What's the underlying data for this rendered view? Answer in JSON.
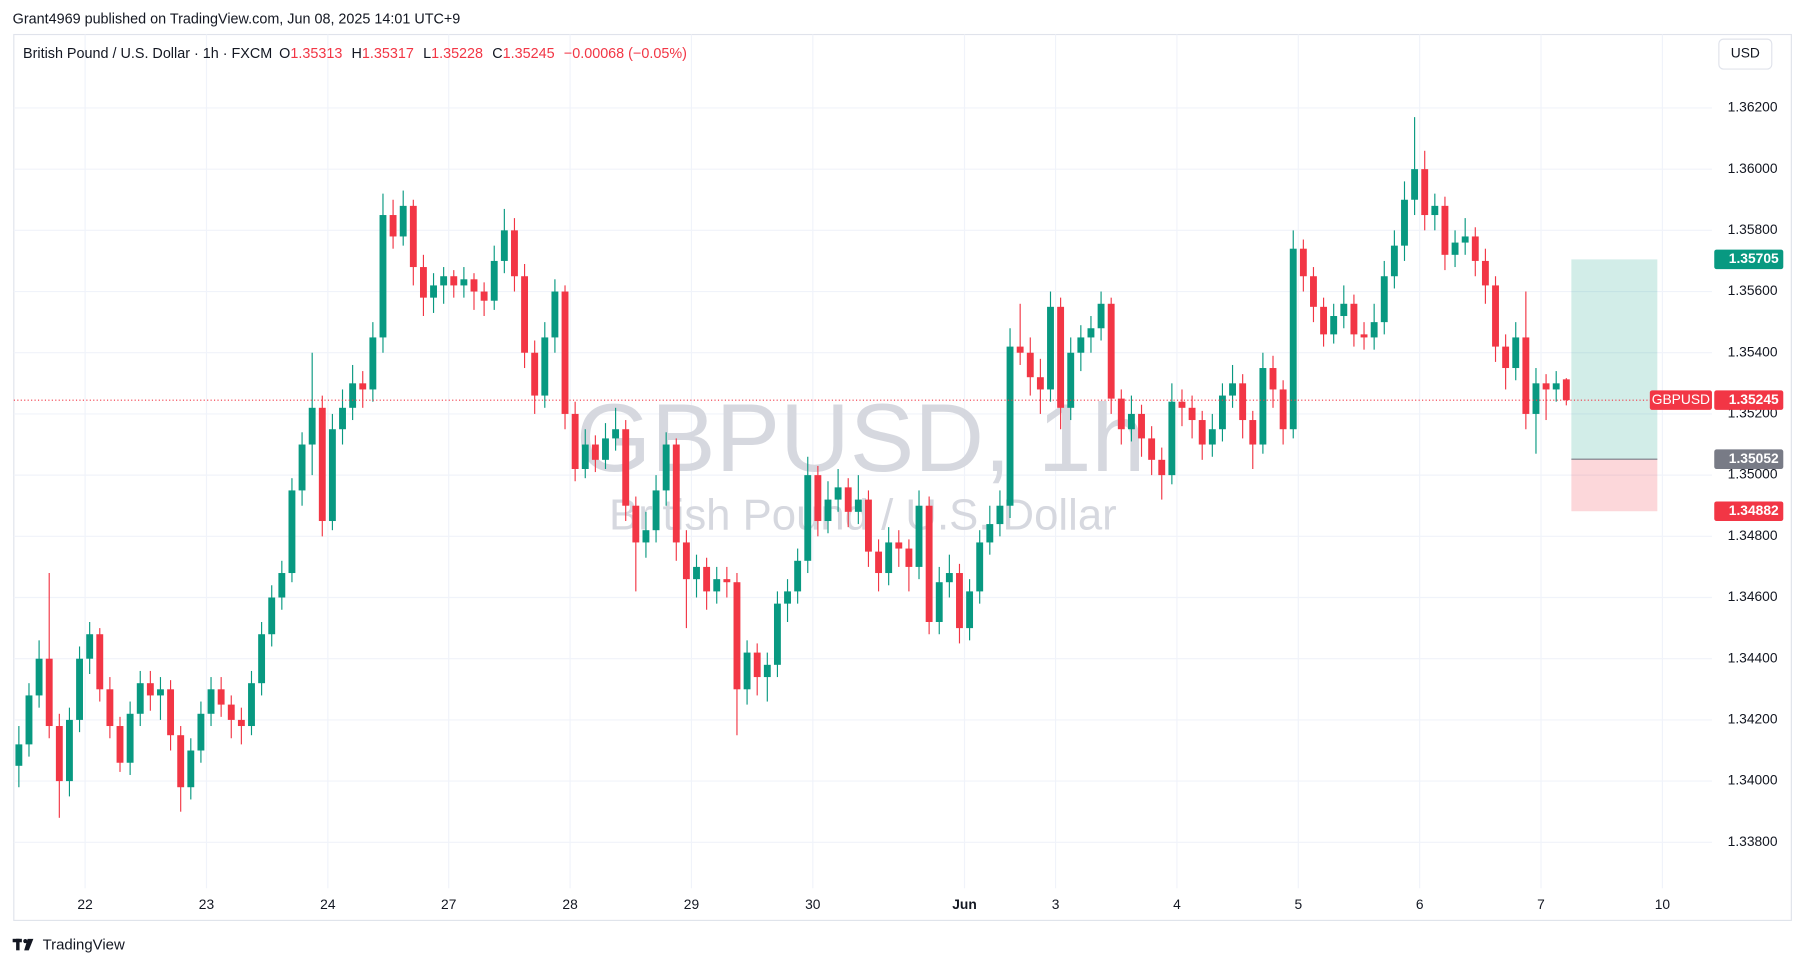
{
  "header": {
    "publisher": "Grant4969 published on TradingView.com, Jun 08, 2025 14:01 UTC+9"
  },
  "chart_data": {
    "type": "candlestick",
    "title": "British Pound / U.S. Dollar · 1h · FXCM",
    "ohlc_labels": [
      "O",
      "H",
      "L",
      "C"
    ],
    "change": "−0.00068 (−0.05%)",
    "watermark": "GBPUSD, 1h",
    "watermark_subtitle": "British Pound / U.S. Dollar",
    "currency": "USD",
    "symbol": "GBPUSD",
    "up_color": "#089981",
    "down_color": "#f23645",
    "grid": true,
    "xlim": [
      0,
      335.8
    ],
    "xticks": [
      {
        "value": 14.1,
        "label": "22"
      },
      {
        "value": 38.1,
        "label": "23"
      },
      {
        "value": 62.1,
        "label": "24"
      },
      {
        "value": 86,
        "label": "27"
      },
      {
        "value": 110,
        "label": "28"
      },
      {
        "value": 134,
        "label": "29"
      },
      {
        "value": 158,
        "label": "30"
      },
      {
        "value": 188,
        "label": "Jun"
      },
      {
        "value": 206,
        "label": "3"
      },
      {
        "value": 230,
        "label": "4"
      },
      {
        "value": 254,
        "label": "5"
      },
      {
        "value": 278,
        "label": "6"
      },
      {
        "value": 302,
        "label": "7"
      },
      {
        "value": 326,
        "label": "10"
      }
    ],
    "ylim": [
      1.3365,
      1.3644
    ],
    "yticks": [
      {
        "value": 1.338,
        "label": "1.33800"
      },
      {
        "value": 1.34,
        "label": "1.34000"
      },
      {
        "value": 1.342,
        "label": "1.34200"
      },
      {
        "value": 1.344,
        "label": "1.34400"
      },
      {
        "value": 1.346,
        "label": "1.34600"
      },
      {
        "value": 1.348,
        "label": "1.34800"
      },
      {
        "value": 1.35,
        "label": "1.35000"
      },
      {
        "value": 1.352,
        "label": "1.35200"
      },
      {
        "value": 1.354,
        "label": "1.35400"
      },
      {
        "value": 1.356,
        "label": "1.35600"
      },
      {
        "value": 1.358,
        "label": "1.35800"
      },
      {
        "value": 1.36,
        "label": "1.36000"
      },
      {
        "value": 1.362,
        "label": "1.36200"
      }
    ],
    "position": {
      "target": 1.35705,
      "entry": 1.35052,
      "stop": 1.34882,
      "x_start": 308,
      "x_end": 325
    },
    "candles": [
      [
        1.3405,
        1.3418,
        1.3398,
        1.3412
      ],
      [
        1.3412,
        1.3432,
        1.3408,
        1.3428
      ],
      [
        1.3428,
        1.3446,
        1.3424,
        1.344
      ],
      [
        1.344,
        1.3468,
        1.3414,
        1.3418
      ],
      [
        1.3418,
        1.3422,
        1.3388,
        1.34
      ],
      [
        1.34,
        1.3424,
        1.3395,
        1.342
      ],
      [
        1.342,
        1.3444,
        1.3416,
        1.344
      ],
      [
        1.344,
        1.3452,
        1.3435,
        1.3448
      ],
      [
        1.3448,
        1.345,
        1.3426,
        1.343
      ],
      [
        1.343,
        1.3434,
        1.3414,
        1.3418
      ],
      [
        1.3418,
        1.3421,
        1.3403,
        1.3406
      ],
      [
        1.3406,
        1.3426,
        1.3402,
        1.3422
      ],
      [
        1.3422,
        1.3436,
        1.3418,
        1.3432
      ],
      [
        1.3432,
        1.3436,
        1.3423,
        1.3428
      ],
      [
        1.3428,
        1.3434,
        1.342,
        1.343
      ],
      [
        1.343,
        1.3433,
        1.341,
        1.3415
      ],
      [
        1.3415,
        1.3418,
        1.339,
        1.3398
      ],
      [
        1.3398,
        1.3414,
        1.3394,
        1.341
      ],
      [
        1.341,
        1.3426,
        1.3406,
        1.3422
      ],
      [
        1.3422,
        1.3434,
        1.3418,
        1.343
      ],
      [
        1.343,
        1.3434,
        1.3421,
        1.3425
      ],
      [
        1.3425,
        1.3428,
        1.3414,
        1.342
      ],
      [
        1.342,
        1.3424,
        1.3412,
        1.3418
      ],
      [
        1.3418,
        1.3436,
        1.3415,
        1.3432
      ],
      [
        1.3432,
        1.3452,
        1.3428,
        1.3448
      ],
      [
        1.3448,
        1.3464,
        1.3444,
        1.346
      ],
      [
        1.346,
        1.3472,
        1.3456,
        1.3468
      ],
      [
        1.3468,
        1.3499,
        1.3465,
        1.3495
      ],
      [
        1.3495,
        1.3514,
        1.349,
        1.351
      ],
      [
        1.351,
        1.354,
        1.35,
        1.3522
      ],
      [
        1.3522,
        1.3526,
        1.348,
        1.3485
      ],
      [
        1.3485,
        1.352,
        1.3482,
        1.3515
      ],
      [
        1.3515,
        1.3528,
        1.351,
        1.3522
      ],
      [
        1.3522,
        1.3536,
        1.3518,
        1.353
      ],
      [
        1.353,
        1.3534,
        1.3522,
        1.3528
      ],
      [
        1.3528,
        1.355,
        1.3524,
        1.3545
      ],
      [
        1.3545,
        1.3592,
        1.354,
        1.3585
      ],
      [
        1.3585,
        1.359,
        1.3574,
        1.3578
      ],
      [
        1.3578,
        1.3593,
        1.3575,
        1.3588
      ],
      [
        1.3588,
        1.359,
        1.3562,
        1.3568
      ],
      [
        1.3568,
        1.3572,
        1.3552,
        1.3558
      ],
      [
        1.3558,
        1.3566,
        1.3553,
        1.3562
      ],
      [
        1.3562,
        1.3568,
        1.3556,
        1.3565
      ],
      [
        1.3565,
        1.3567,
        1.3558,
        1.3562
      ],
      [
        1.3562,
        1.3568,
        1.3558,
        1.3564
      ],
      [
        1.3564,
        1.3566,
        1.3554,
        1.356
      ],
      [
        1.356,
        1.3563,
        1.3552,
        1.3557
      ],
      [
        1.3557,
        1.3575,
        1.3554,
        1.357
      ],
      [
        1.357,
        1.3587,
        1.3566,
        1.358
      ],
      [
        1.358,
        1.3584,
        1.356,
        1.3565
      ],
      [
        1.3565,
        1.3569,
        1.3535,
        1.354
      ],
      [
        1.354,
        1.3544,
        1.352,
        1.3526
      ],
      [
        1.3526,
        1.355,
        1.3522,
        1.3545
      ],
      [
        1.3545,
        1.3564,
        1.354,
        1.356
      ],
      [
        1.356,
        1.3562,
        1.3515,
        1.352
      ],
      [
        1.352,
        1.3524,
        1.3498,
        1.3502
      ],
      [
        1.3502,
        1.3515,
        1.3499,
        1.351
      ],
      [
        1.351,
        1.3513,
        1.3501,
        1.3505
      ],
      [
        1.3505,
        1.3517,
        1.3502,
        1.3512
      ],
      [
        1.3512,
        1.3522,
        1.3508,
        1.3515
      ],
      [
        1.3515,
        1.3518,
        1.3485,
        1.349
      ],
      [
        1.349,
        1.3493,
        1.3462,
        1.3478
      ],
      [
        1.3478,
        1.3488,
        1.3473,
        1.3482
      ],
      [
        1.3482,
        1.35,
        1.3478,
        1.3495
      ],
      [
        1.3495,
        1.3514,
        1.349,
        1.351
      ],
      [
        1.351,
        1.3512,
        1.3472,
        1.3478
      ],
      [
        1.3478,
        1.3482,
        1.345,
        1.3466
      ],
      [
        1.3466,
        1.3474,
        1.346,
        1.347
      ],
      [
        1.347,
        1.3473,
        1.3456,
        1.3462
      ],
      [
        1.3462,
        1.347,
        1.3458,
        1.3466
      ],
      [
        1.3466,
        1.347,
        1.346,
        1.3465
      ],
      [
        1.3465,
        1.3468,
        1.3415,
        1.343
      ],
      [
        1.343,
        1.3446,
        1.3425,
        1.3442
      ],
      [
        1.3442,
        1.3445,
        1.3428,
        1.3434
      ],
      [
        1.3434,
        1.3442,
        1.3426,
        1.3438
      ],
      [
        1.3438,
        1.3462,
        1.3434,
        1.3458
      ],
      [
        1.3458,
        1.3466,
        1.3452,
        1.3462
      ],
      [
        1.3462,
        1.3476,
        1.3458,
        1.3472
      ],
      [
        1.3472,
        1.3506,
        1.3468,
        1.35
      ],
      [
        1.35,
        1.3503,
        1.348,
        1.3485
      ],
      [
        1.3485,
        1.3498,
        1.3481,
        1.3492
      ],
      [
        1.3492,
        1.3502,
        1.3488,
        1.3496
      ],
      [
        1.3496,
        1.3499,
        1.3483,
        1.3488
      ],
      [
        1.3488,
        1.35,
        1.3484,
        1.3492
      ],
      [
        1.3492,
        1.3495,
        1.347,
        1.3475
      ],
      [
        1.3475,
        1.3479,
        1.3462,
        1.3468
      ],
      [
        1.3468,
        1.3483,
        1.3464,
        1.3478
      ],
      [
        1.3478,
        1.3482,
        1.347,
        1.3476
      ],
      [
        1.3476,
        1.3479,
        1.3462,
        1.347
      ],
      [
        1.347,
        1.3495,
        1.3466,
        1.349
      ],
      [
        1.349,
        1.3493,
        1.3448,
        1.3452
      ],
      [
        1.3452,
        1.347,
        1.3448,
        1.3465
      ],
      [
        1.3465,
        1.3474,
        1.346,
        1.3468
      ],
      [
        1.3468,
        1.3471,
        1.3445,
        1.345
      ],
      [
        1.345,
        1.3466,
        1.3446,
        1.3462
      ],
      [
        1.3462,
        1.3482,
        1.3458,
        1.3478
      ],
      [
        1.3478,
        1.349,
        1.3474,
        1.3484
      ],
      [
        1.3484,
        1.3495,
        1.348,
        1.349
      ],
      [
        1.349,
        1.3548,
        1.3486,
        1.3542
      ],
      [
        1.3542,
        1.3556,
        1.3536,
        1.354
      ],
      [
        1.354,
        1.3545,
        1.3526,
        1.3532
      ],
      [
        1.3532,
        1.3538,
        1.352,
        1.3528
      ],
      [
        1.3528,
        1.356,
        1.3524,
        1.3555
      ],
      [
        1.3555,
        1.3558,
        1.3515,
        1.3522
      ],
      [
        1.3522,
        1.3545,
        1.3518,
        1.354
      ],
      [
        1.354,
        1.3549,
        1.3534,
        1.3545
      ],
      [
        1.3545,
        1.3552,
        1.354,
        1.3548
      ],
      [
        1.3548,
        1.356,
        1.3544,
        1.3556
      ],
      [
        1.3556,
        1.3558,
        1.352,
        1.3525
      ],
      [
        1.3525,
        1.3528,
        1.351,
        1.3515
      ],
      [
        1.3515,
        1.3526,
        1.3511,
        1.352
      ],
      [
        1.352,
        1.3523,
        1.3506,
        1.3512
      ],
      [
        1.3512,
        1.3516,
        1.35,
        1.3505
      ],
      [
        1.3505,
        1.3509,
        1.3492,
        1.35
      ],
      [
        1.35,
        1.353,
        1.3497,
        1.3524
      ],
      [
        1.3524,
        1.3528,
        1.3516,
        1.3522
      ],
      [
        1.3522,
        1.3526,
        1.3512,
        1.3518
      ],
      [
        1.3518,
        1.3521,
        1.3505,
        1.351
      ],
      [
        1.351,
        1.352,
        1.3506,
        1.3515
      ],
      [
        1.3515,
        1.353,
        1.3511,
        1.3526
      ],
      [
        1.3526,
        1.3536,
        1.3522,
        1.353
      ],
      [
        1.353,
        1.3533,
        1.3512,
        1.3518
      ],
      [
        1.3518,
        1.3521,
        1.3502,
        1.351
      ],
      [
        1.351,
        1.354,
        1.3507,
        1.3535
      ],
      [
        1.3535,
        1.3539,
        1.3522,
        1.3528
      ],
      [
        1.3528,
        1.3531,
        1.351,
        1.3515
      ],
      [
        1.3515,
        1.358,
        1.3512,
        1.3574
      ],
      [
        1.3574,
        1.3577,
        1.356,
        1.3565
      ],
      [
        1.3565,
        1.3568,
        1.355,
        1.3555
      ],
      [
        1.3555,
        1.3558,
        1.3542,
        1.3546
      ],
      [
        1.3546,
        1.3556,
        1.3543,
        1.3552
      ],
      [
        1.3552,
        1.3562,
        1.3548,
        1.3556
      ],
      [
        1.3556,
        1.3559,
        1.3542,
        1.3546
      ],
      [
        1.3546,
        1.355,
        1.3541,
        1.3545
      ],
      [
        1.3545,
        1.3556,
        1.3541,
        1.355
      ],
      [
        1.355,
        1.357,
        1.3546,
        1.3565
      ],
      [
        1.3565,
        1.358,
        1.3561,
        1.3575
      ],
      [
        1.3575,
        1.3596,
        1.357,
        1.359
      ],
      [
        1.359,
        1.3617,
        1.3585,
        1.36
      ],
      [
        1.36,
        1.3606,
        1.358,
        1.3585
      ],
      [
        1.3585,
        1.3592,
        1.358,
        1.3588
      ],
      [
        1.3588,
        1.3591,
        1.3567,
        1.3572
      ],
      [
        1.3572,
        1.358,
        1.3568,
        1.3576
      ],
      [
        1.3576,
        1.3584,
        1.3572,
        1.3578
      ],
      [
        1.3578,
        1.3581,
        1.3565,
        1.357
      ],
      [
        1.357,
        1.3574,
        1.3556,
        1.3562
      ],
      [
        1.3562,
        1.3565,
        1.3537,
        1.3542
      ],
      [
        1.3542,
        1.3546,
        1.3528,
        1.3535
      ],
      [
        1.3535,
        1.355,
        1.3531,
        1.3545
      ],
      [
        1.3545,
        1.356,
        1.3515,
        1.352
      ],
      [
        1.352,
        1.3535,
        1.3507,
        1.353
      ],
      [
        1.353,
        1.3533,
        1.3518,
        1.3528
      ],
      [
        1.3528,
        1.3534,
        1.3524,
        1.353
      ],
      [
        1.35313,
        1.35317,
        1.35228,
        1.35245
      ]
    ]
  },
  "footer": {
    "brand": "TradingView"
  }
}
